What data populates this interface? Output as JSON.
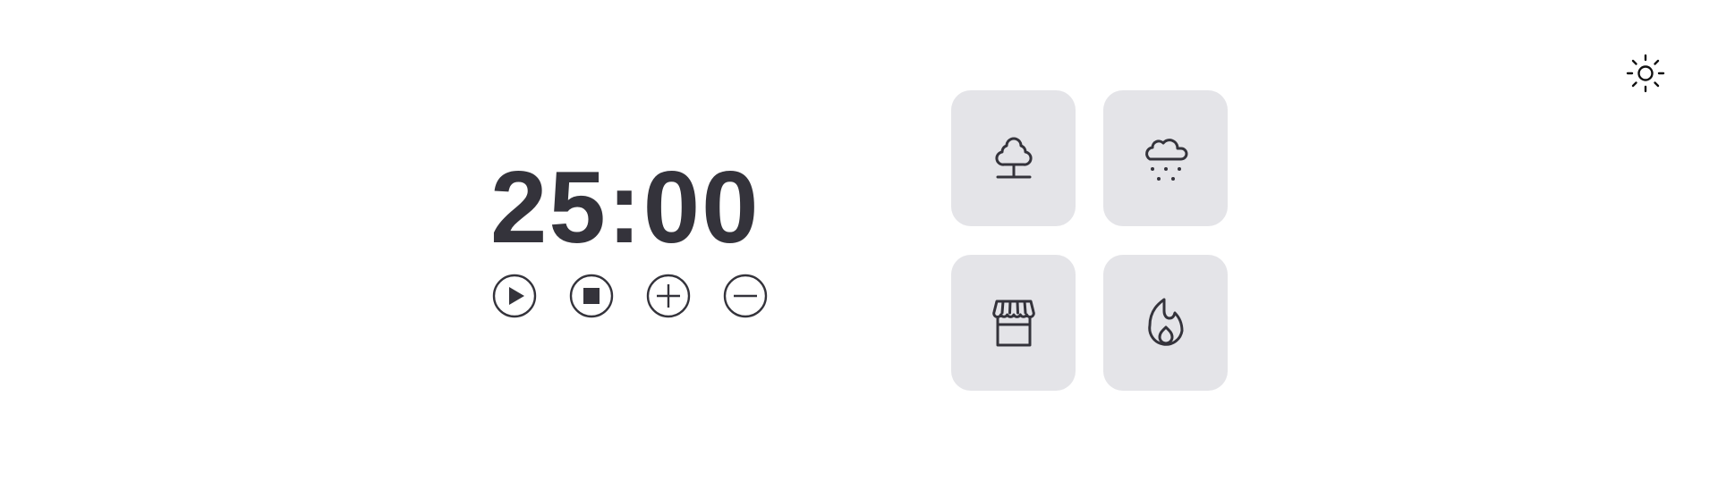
{
  "timer": {
    "display": "25:00"
  },
  "controls": [
    {
      "id": "play",
      "icon": "play-icon"
    },
    {
      "id": "stop",
      "icon": "stop-icon"
    },
    {
      "id": "increase",
      "icon": "plus-icon"
    },
    {
      "id": "decrease",
      "icon": "minus-icon"
    }
  ],
  "sound_tiles": [
    {
      "id": "forest",
      "icon": "tree-icon"
    },
    {
      "id": "rain",
      "icon": "rain-cloud-icon"
    },
    {
      "id": "coffee-shop",
      "icon": "storefront-icon"
    },
    {
      "id": "fireplace",
      "icon": "flame-icon"
    }
  ],
  "theme_toggle": {
    "icon": "sun-icon"
  },
  "colors": {
    "text": "#34333b",
    "tile_background": "#e4e4e8",
    "page_background": "#ffffff"
  }
}
